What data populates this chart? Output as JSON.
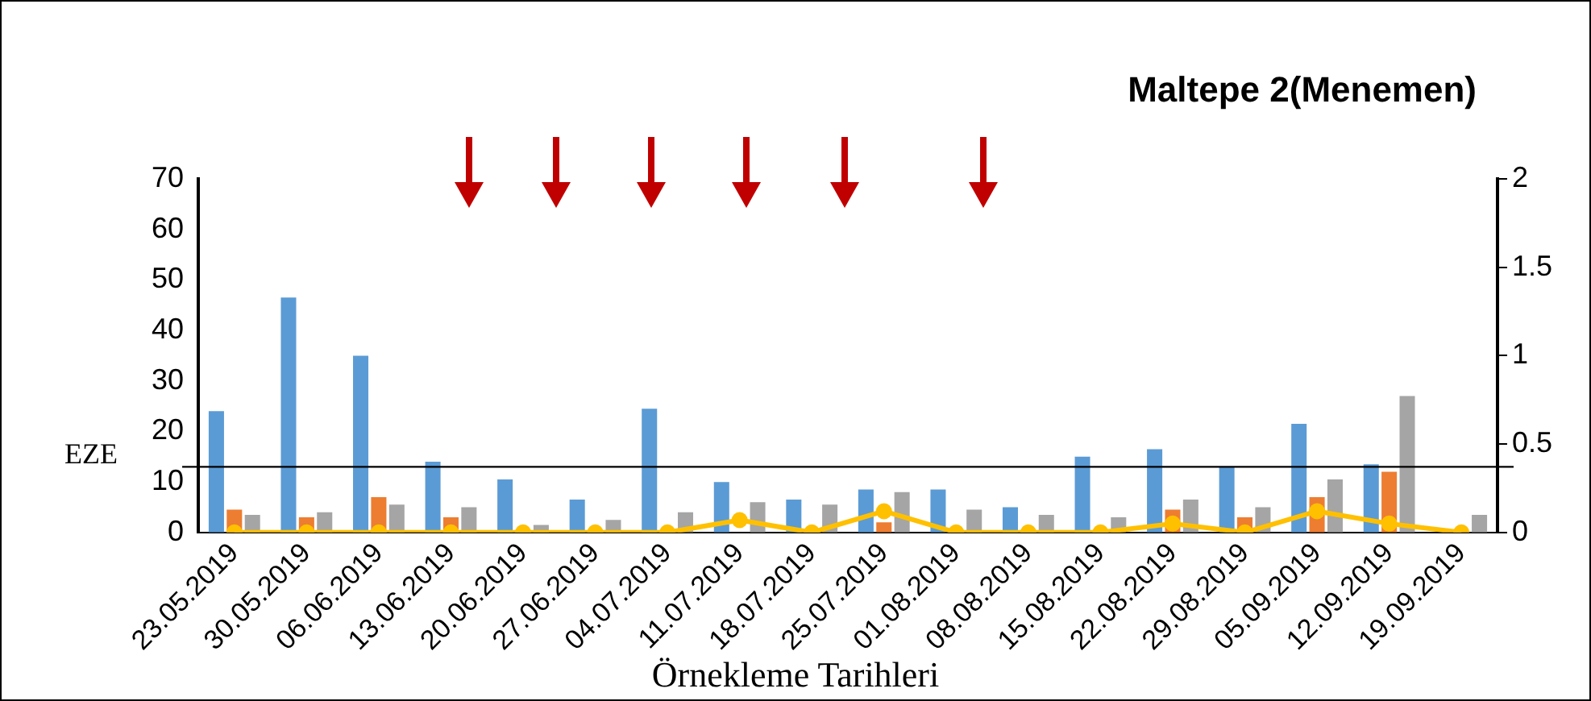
{
  "chart_data": {
    "type": "bar",
    "title": "Maltepe 2(Menemen)",
    "xlabel": "Örnekleme Tarihleri",
    "categories": [
      "23.05.2019",
      "30.05.2019",
      "06.06.2019",
      "13.06.2019",
      "20.06.2019",
      "27.06.2019",
      "04.07.2019",
      "11.07.2019",
      "18.07.2019",
      "25.07.2019",
      "01.08.2019",
      "08.08.2019",
      "15.08.2019",
      "22.08.2019",
      "29.08.2019",
      "05.09.2019",
      "12.09.2019",
      "19.09.2019"
    ],
    "series": [
      {
        "color": "#5b9bd5",
        "values": [
          24,
          46.5,
          35,
          14,
          10.5,
          6.5,
          24.5,
          10,
          6.5,
          8.5,
          8.5,
          5,
          15,
          16.5,
          13,
          21.5,
          13.5,
          0
        ]
      },
      {
        "color": "#ed7d31",
        "values": [
          4.5,
          3,
          7,
          3,
          0,
          0,
          0,
          0,
          0,
          2,
          0,
          0,
          0,
          4.5,
          3,
          7,
          12,
          0
        ]
      },
      {
        "color": "#a5a5a5",
        "values": [
          3.5,
          4,
          5.5,
          5,
          1.5,
          2.5,
          4,
          6,
          5.5,
          8,
          4.5,
          3.5,
          3,
          6.5,
          5,
          10.5,
          27,
          3.5
        ]
      },
      {
        "type": "line",
        "axis": "y2",
        "color": "#ffc000",
        "values": [
          0,
          0,
          0,
          0,
          0,
          0,
          0,
          0.07,
          0,
          0.12,
          0,
          0,
          0,
          0.05,
          0,
          0.12,
          0.05,
          0
        ]
      }
    ],
    "ylim": [
      0,
      70
    ],
    "yticks": [
      0,
      10,
      20,
      30,
      40,
      50,
      60,
      70
    ],
    "y2lim": [
      0,
      2
    ],
    "y2ticks": [
      0,
      0.5,
      1,
      1.5,
      2
    ],
    "ref_lines": [
      {
        "axis": "y",
        "value": 13,
        "label": "EZE",
        "color": "#000000"
      }
    ],
    "grid": false,
    "legend": false,
    "marker": "circle",
    "line_style": "solid"
  }
}
